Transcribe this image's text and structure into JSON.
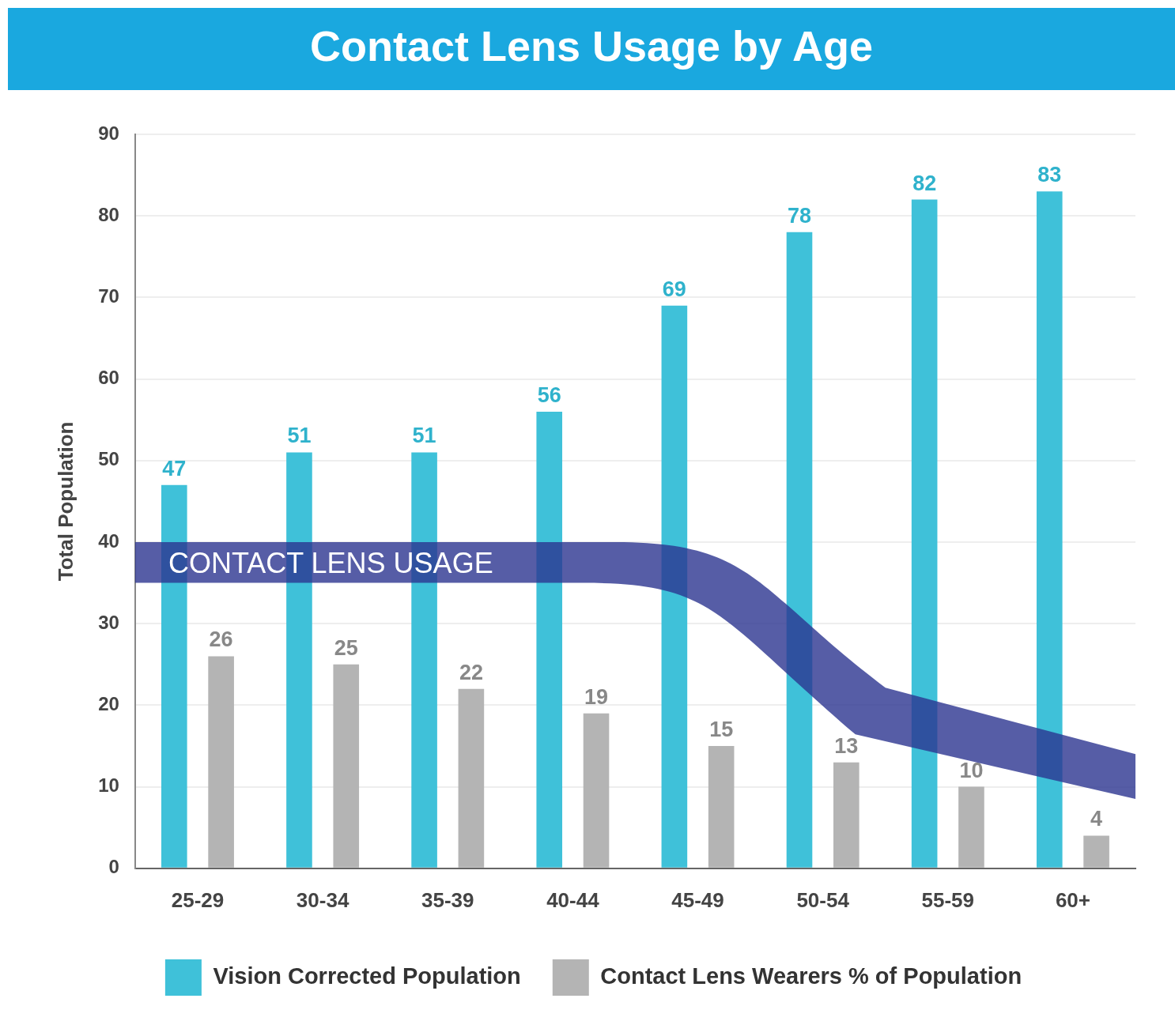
{
  "chart_data": {
    "type": "bar",
    "title": "Contact Lens Usage by Age",
    "ylabel": "Total Population",
    "categories": [
      "25-29",
      "30-34",
      "35-39",
      "40-44",
      "45-49",
      "50-54",
      "55-59",
      "60+"
    ],
    "series": [
      {
        "name": "Vision Corrected Population",
        "color": "#3fc1d9",
        "values": [
          47,
          51,
          51,
          56,
          69,
          78,
          82,
          83
        ]
      },
      {
        "name": "Contact Lens Wearers % of Population",
        "color": "#b4b4b4",
        "values": [
          26,
          25,
          22,
          19,
          15,
          13,
          10,
          4
        ]
      }
    ],
    "ylim": [
      0,
      90
    ],
    "yticks": [
      0,
      10,
      20,
      30,
      40,
      50,
      60,
      70,
      80,
      90
    ],
    "grid": "y",
    "legend": "bottom",
    "data_labels": true,
    "annotations": [
      "CONTACT LENS USAGE"
    ]
  }
}
